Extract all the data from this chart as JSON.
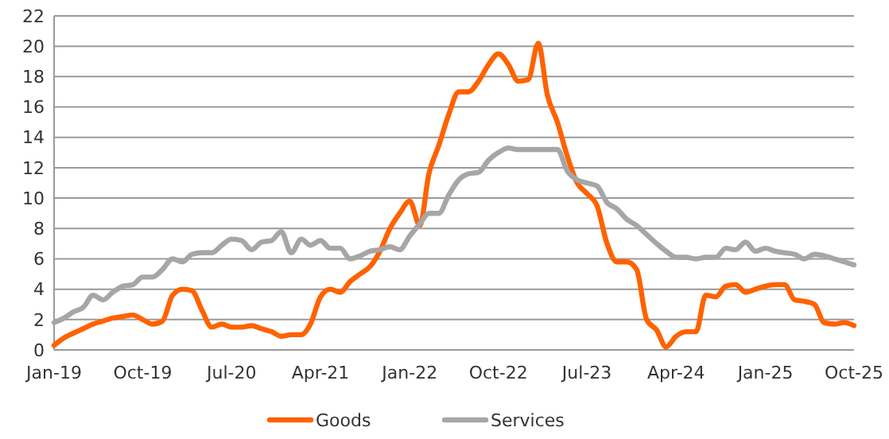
{
  "chart_data": {
    "type": "line",
    "x": [
      "2019-01",
      "2019-02",
      "2019-03",
      "2019-04",
      "2019-05",
      "2019-06",
      "2019-07",
      "2019-08",
      "2019-09",
      "2019-10",
      "2019-11",
      "2019-12",
      "2020-01",
      "2020-02",
      "2020-03",
      "2020-04",
      "2020-05",
      "2020-06",
      "2020-07",
      "2020-08",
      "2020-09",
      "2020-10",
      "2020-11",
      "2020-12",
      "2021-01",
      "2021-02",
      "2021-03",
      "2021-04",
      "2021-05",
      "2021-06",
      "2021-07",
      "2021-08",
      "2021-09",
      "2021-10",
      "2021-11",
      "2021-12",
      "2022-01",
      "2022-02",
      "2022-03",
      "2022-04",
      "2022-05",
      "2022-06",
      "2022-07",
      "2022-08",
      "2022-09",
      "2022-10",
      "2022-11",
      "2022-12",
      "2023-01",
      "2023-02",
      "2023-03",
      "2023-04",
      "2023-05",
      "2023-06",
      "2023-07",
      "2023-08",
      "2023-09",
      "2023-10",
      "2023-11",
      "2023-12",
      "2024-01",
      "2024-02",
      "2024-03",
      "2024-04",
      "2024-05",
      "2024-06",
      "2024-07",
      "2024-08",
      "2024-09",
      "2024-10",
      "2024-11",
      "2024-12",
      "2025-01",
      "2025-02",
      "2025-03",
      "2025-04",
      "2025-05",
      "2025-06",
      "2025-07",
      "2025-08",
      "2025-09",
      "2025-10"
    ],
    "series": [
      {
        "name": "Goods",
        "color": "#ff6200",
        "values": [
          0.3,
          0.8,
          1.1,
          1.4,
          1.7,
          1.9,
          2.1,
          2.2,
          2.3,
          2.0,
          1.7,
          1.9,
          3.6,
          4.0,
          3.9,
          2.6,
          1.5,
          1.7,
          1.5,
          1.5,
          1.6,
          1.4,
          1.2,
          0.9,
          1.0,
          1.0,
          1.7,
          3.5,
          4.0,
          3.8,
          4.5,
          5.0,
          5.5,
          6.5,
          8.0,
          9.0,
          9.8,
          8.2,
          11.6,
          13.5,
          15.5,
          17.0,
          17.0,
          17.7,
          18.8,
          19.5,
          18.8,
          17.7,
          17.8,
          20.2,
          16.8,
          15.0,
          12.8,
          11.0,
          10.3,
          9.5,
          7.0,
          5.8,
          5.8,
          5.3,
          2.0,
          1.3,
          0.2,
          0.9,
          1.2,
          1.2,
          3.6,
          3.5,
          4.2,
          4.3,
          3.8,
          4.0,
          4.2,
          4.3,
          4.3,
          3.3,
          3.2,
          3.0,
          1.8,
          1.7,
          1.8,
          1.6
        ]
      },
      {
        "name": "Services",
        "color": "#a6a6a6",
        "values": [
          1.8,
          2.1,
          2.5,
          2.8,
          3.6,
          3.3,
          3.8,
          4.2,
          4.3,
          4.8,
          4.8,
          5.3,
          6.0,
          5.8,
          6.3,
          6.4,
          6.4,
          6.9,
          7.3,
          7.2,
          6.6,
          7.1,
          7.2,
          7.8,
          6.4,
          7.3,
          6.9,
          7.2,
          6.7,
          6.7,
          6.0,
          6.2,
          6.5,
          6.6,
          6.8,
          6.6,
          7.5,
          8.3,
          9.0,
          9.0,
          10.2,
          11.2,
          11.6,
          11.7,
          12.5,
          13.0,
          13.3,
          13.2,
          13.2,
          13.2,
          13.2,
          13.2,
          11.8,
          11.2,
          11.0,
          10.8,
          9.7,
          9.3,
          8.6,
          8.2,
          7.6,
          7.0,
          6.5,
          6.1,
          6.1,
          6.0,
          6.1,
          6.1,
          6.7,
          6.6,
          7.1,
          6.5,
          6.7,
          6.5,
          6.4,
          6.3,
          6.0,
          6.3,
          6.2,
          6.0,
          5.8,
          5.6
        ]
      }
    ],
    "xlim": [
      "2019-01",
      "2025-10"
    ],
    "xticks": [
      {
        "value": "2019-01",
        "label": "Jan-19"
      },
      {
        "value": "2019-10",
        "label": "Oct-19"
      },
      {
        "value": "2020-07",
        "label": "Jul-20"
      },
      {
        "value": "2021-04",
        "label": "Apr-21"
      },
      {
        "value": "2022-01",
        "label": "Jan-22"
      },
      {
        "value": "2022-10",
        "label": "Oct-22"
      },
      {
        "value": "2023-07",
        "label": "Jul-23"
      },
      {
        "value": "2024-04",
        "label": "Apr-24"
      },
      {
        "value": "2025-01",
        "label": "Jan-25"
      },
      {
        "value": "2025-10",
        "label": "Oct-25"
      }
    ],
    "ylim": [
      0,
      22
    ],
    "yticks": [
      0,
      2,
      4,
      6,
      8,
      10,
      12,
      14,
      16,
      18,
      20,
      22
    ],
    "grid": "y",
    "legend": "bottom",
    "line_style": "solid",
    "marker": "none"
  }
}
